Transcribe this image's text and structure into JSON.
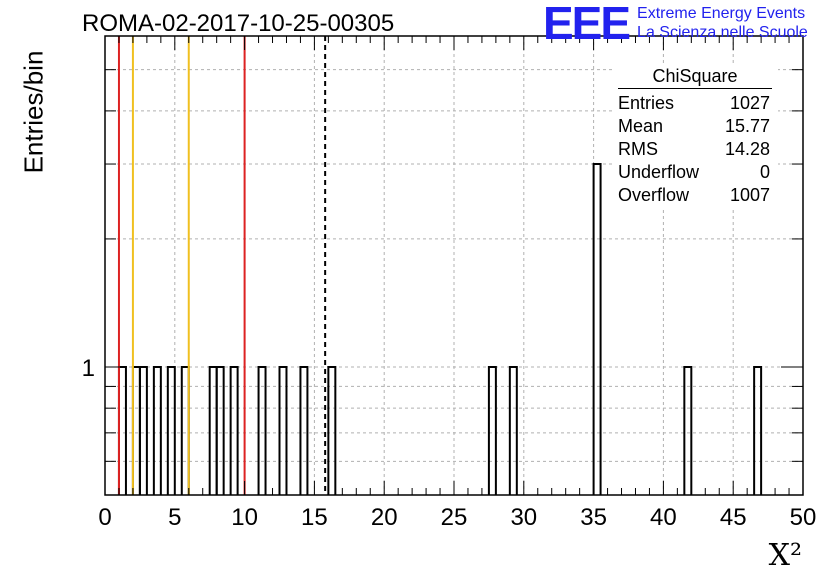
{
  "title": "ROMA-02-2017-10-25-00305",
  "logo": {
    "mark": "EEE",
    "line1": "Extreme Energy Events",
    "line2": "La Scienza nelle Scuole"
  },
  "stats": {
    "name": "ChiSquare",
    "rows": [
      {
        "label": "Entries",
        "value": "1027"
      },
      {
        "label": "Mean",
        "value": "15.77"
      },
      {
        "label": "RMS",
        "value": "14.28"
      },
      {
        "label": "Underflow",
        "value": "0"
      },
      {
        "label": "Overflow",
        "value": "1007"
      }
    ]
  },
  "chart_data": {
    "type": "histogram",
    "title": "ROMA-02-2017-10-25-00305",
    "xlabel": "X²",
    "ylabel": "Entries/bin",
    "xlim": [
      0,
      50
    ],
    "ylim": [
      0.5,
      6
    ],
    "log_y": true,
    "grid": true,
    "bin_width": 0.5,
    "x_ticks": [
      0,
      5,
      10,
      15,
      20,
      25,
      30,
      35,
      40,
      45,
      50
    ],
    "y_tick_labels": [
      "1"
    ],
    "bins": [
      {
        "x": 1.0,
        "count": 1
      },
      {
        "x": 2.0,
        "count": 1
      },
      {
        "x": 2.5,
        "count": 1
      },
      {
        "x": 3.5,
        "count": 1
      },
      {
        "x": 4.5,
        "count": 1
      },
      {
        "x": 5.5,
        "count": 1
      },
      {
        "x": 7.5,
        "count": 1
      },
      {
        "x": 8.0,
        "count": 1
      },
      {
        "x": 9.0,
        "count": 1
      },
      {
        "x": 11.0,
        "count": 1
      },
      {
        "x": 12.5,
        "count": 1
      },
      {
        "x": 14.0,
        "count": 1
      },
      {
        "x": 16.0,
        "count": 1
      },
      {
        "x": 27.5,
        "count": 1
      },
      {
        "x": 29.0,
        "count": 1
      },
      {
        "x": 35.0,
        "count": 3
      },
      {
        "x": 41.5,
        "count": 1
      },
      {
        "x": 46.5,
        "count": 1
      }
    ],
    "vertical_lines": [
      {
        "x": 1,
        "color": "#dd2222",
        "style": "solid"
      },
      {
        "x": 2,
        "color": "#f0c020",
        "style": "solid"
      },
      {
        "x": 6,
        "color": "#f0c020",
        "style": "solid"
      },
      {
        "x": 10,
        "color": "#dd2222",
        "style": "solid"
      },
      {
        "x": 15.77,
        "color": "#000000",
        "style": "dashed"
      }
    ]
  }
}
